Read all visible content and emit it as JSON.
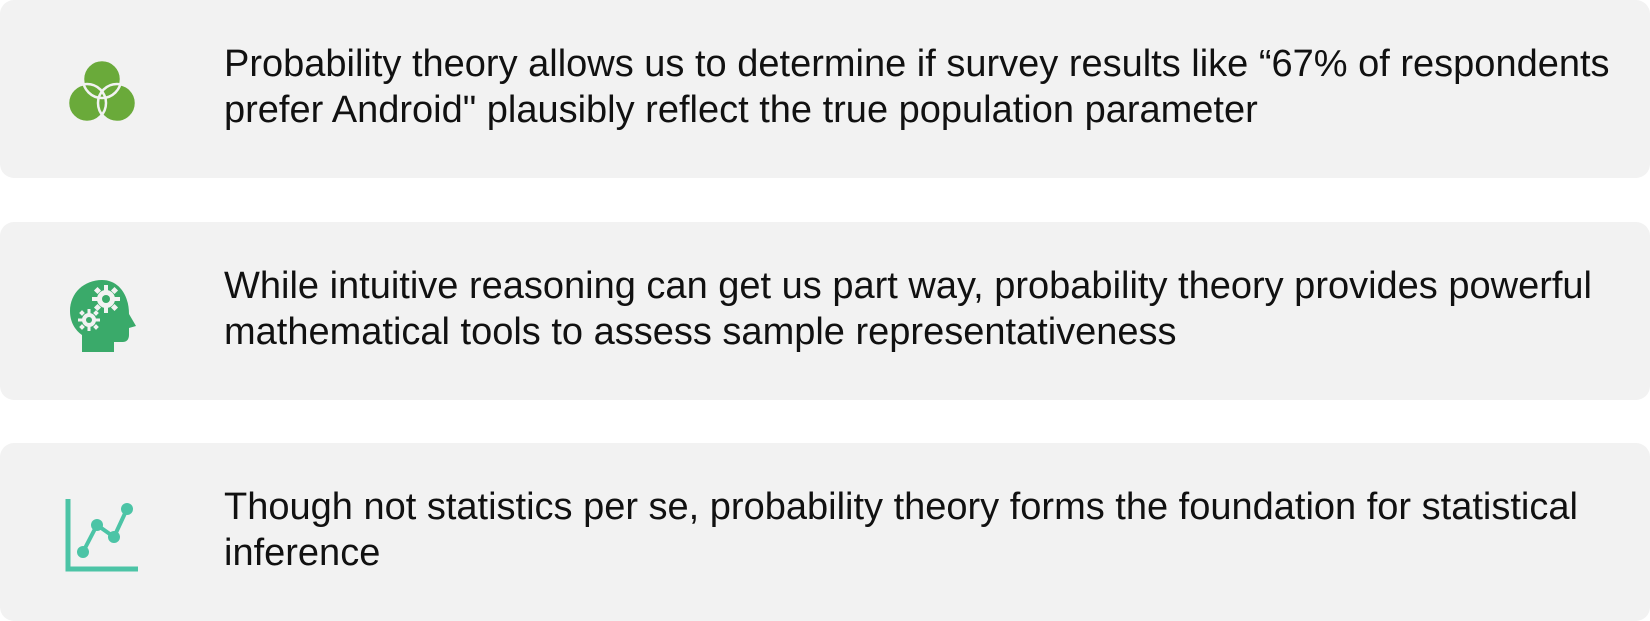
{
  "items": [
    {
      "icon": "venn-diagram-icon",
      "icon_color": "#6aaa3a",
      "text": "Probability theory allows us to determine if survey results like “67% of respondents prefer Android\" plausibly reflect the true population parameter"
    },
    {
      "icon": "head-with-gears-icon",
      "icon_color": "#3aaa6a",
      "text": "While intuitive reasoning can get us part way, probability theory provides powerful mathematical tools to assess sample representativeness"
    },
    {
      "icon": "line-chart-icon",
      "icon_color": "#4cc4a6",
      "text": "Though not statistics per se, probability theory forms the foundation for statistical inference"
    }
  ]
}
